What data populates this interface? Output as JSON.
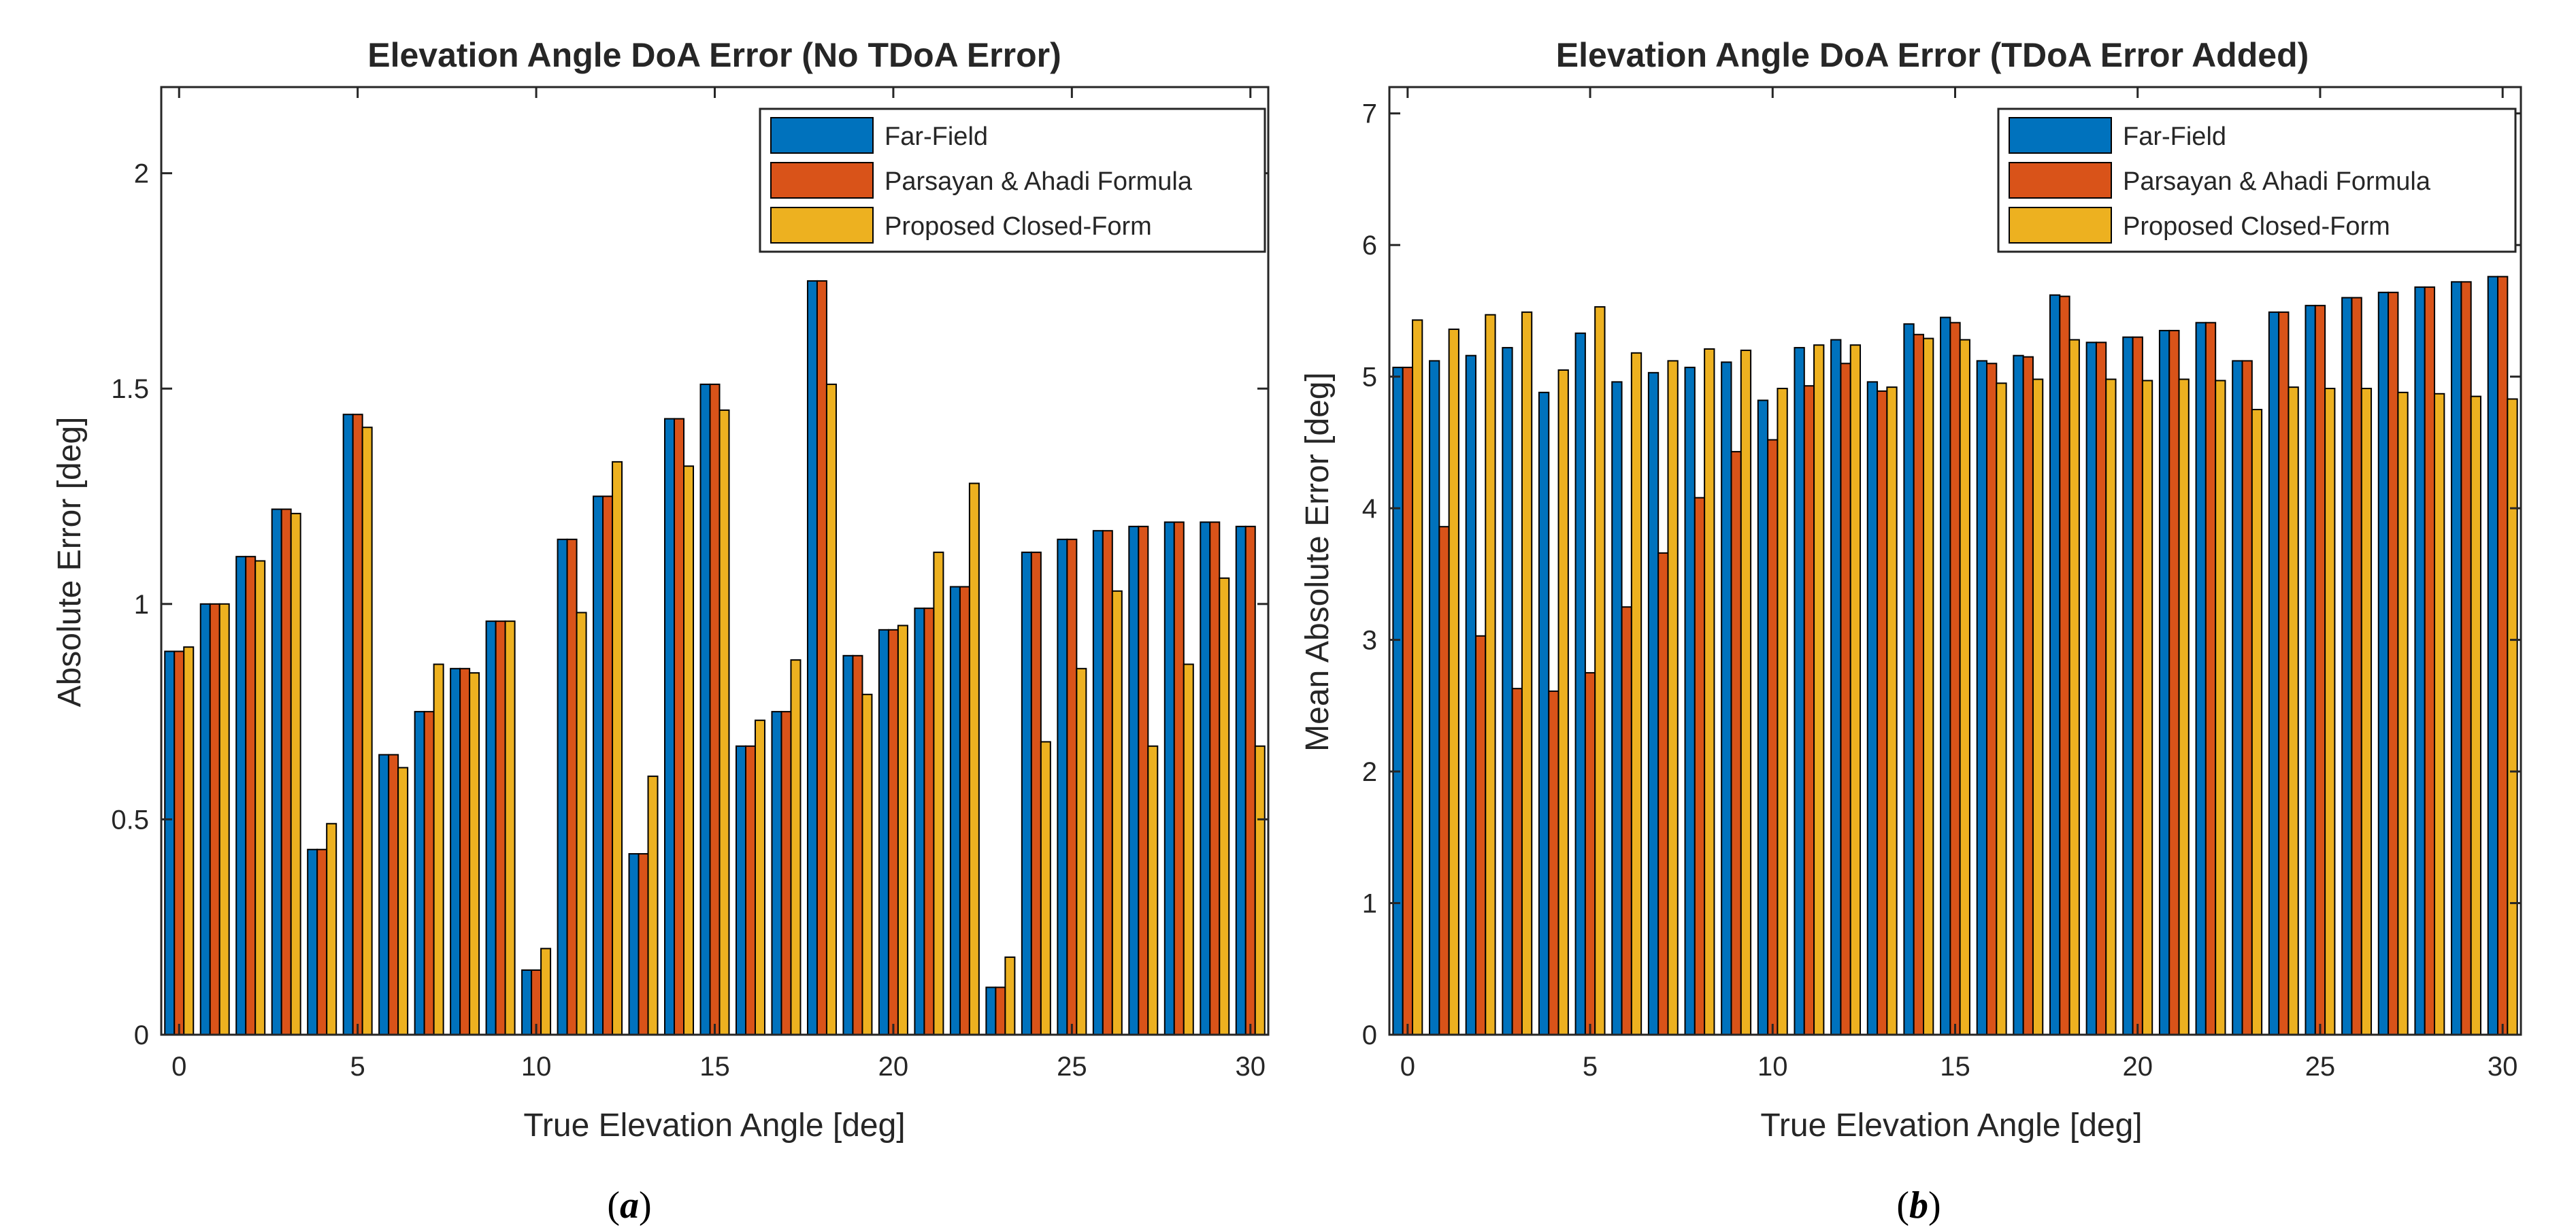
{
  "colors": {
    "far_field": "#0072BD",
    "parsayan_ahadi": "#D95319",
    "proposed": "#EDB120",
    "axis": "#262626",
    "bar_edge": "#000000"
  },
  "chart_data": [
    {
      "type": "bar",
      "panel_label": "a",
      "title": "Elevation Angle DoA Error (No TDoA Error)",
      "xlabel": "True Elevation Angle [deg]",
      "ylabel": "Absolute Error [deg]",
      "xlim": [
        -0.5,
        30.5
      ],
      "ylim": [
        0,
        2.2
      ],
      "xticks": [
        0,
        5,
        10,
        15,
        20,
        25,
        30
      ],
      "yticks": [
        0,
        0.5,
        1,
        1.5,
        2
      ],
      "ytick_labels": [
        "0",
        "0.5",
        "1",
        "1.5",
        "2"
      ],
      "legend_position": "top-right",
      "x": [
        0,
        1,
        2,
        3,
        4,
        5,
        6,
        7,
        8,
        9,
        10,
        11,
        12,
        13,
        14,
        15,
        16,
        17,
        18,
        19,
        20,
        21,
        22,
        23,
        24,
        25,
        26,
        27,
        28,
        29,
        30
      ],
      "series": [
        {
          "name": "Far-Field",
          "color_key": "far_field",
          "values": [
            0.89,
            1.0,
            1.11,
            1.22,
            0.43,
            1.44,
            0.65,
            0.75,
            0.85,
            0.96,
            0.15,
            1.15,
            1.25,
            0.42,
            1.43,
            1.51,
            0.67,
            0.75,
            1.75,
            0.88,
            0.94,
            0.99,
            1.04,
            0.11,
            1.12,
            1.15,
            1.17,
            1.18,
            1.19,
            1.19,
            1.18
          ]
        },
        {
          "name": "Parsayan & Ahadi Formula",
          "color_key": "parsayan_ahadi",
          "values": [
            0.89,
            1.0,
            1.11,
            1.22,
            0.43,
            1.44,
            0.65,
            0.75,
            0.85,
            0.96,
            0.15,
            1.15,
            1.25,
            0.42,
            1.43,
            1.51,
            0.67,
            0.75,
            1.75,
            0.88,
            0.94,
            0.99,
            1.04,
            0.11,
            1.12,
            1.15,
            1.17,
            1.18,
            1.19,
            1.19,
            1.18
          ]
        },
        {
          "name": "Proposed Closed-Form",
          "color_key": "proposed",
          "values": [
            0.9,
            1.0,
            1.1,
            1.21,
            0.49,
            1.41,
            0.62,
            0.86,
            0.84,
            0.96,
            0.2,
            0.98,
            1.33,
            0.6,
            1.32,
            1.45,
            0.73,
            0.87,
            1.51,
            0.79,
            0.95,
            1.12,
            1.28,
            0.18,
            0.68,
            0.85,
            1.03,
            0.67,
            0.86,
            1.06,
            0.67
          ]
        }
      ]
    },
    {
      "type": "bar",
      "panel_label": "b",
      "title": "Elevation Angle DoA Error (TDoA Error Added)",
      "xlabel": "True Elevation Angle [deg]",
      "ylabel": "Mean Absolute Error [deg]",
      "xlim": [
        -0.5,
        30.5
      ],
      "ylim": [
        0,
        7.2
      ],
      "xticks": [
        0,
        5,
        10,
        15,
        20,
        25,
        30
      ],
      "yticks": [
        0,
        1,
        2,
        3,
        4,
        5,
        6,
        7
      ],
      "ytick_labels": [
        "0",
        "1",
        "2",
        "3",
        "4",
        "5",
        "6",
        "7"
      ],
      "legend_position": "top-right",
      "x": [
        0,
        1,
        2,
        3,
        4,
        5,
        6,
        7,
        8,
        9,
        10,
        11,
        12,
        13,
        14,
        15,
        16,
        17,
        18,
        19,
        20,
        21,
        22,
        23,
        24,
        25,
        26,
        27,
        28,
        29,
        30
      ],
      "series": [
        {
          "name": "Far-Field",
          "color_key": "far_field",
          "values": [
            5.07,
            5.12,
            5.16,
            5.22,
            4.88,
            5.33,
            4.96,
            5.03,
            5.07,
            5.11,
            4.82,
            5.22,
            5.28,
            4.96,
            5.4,
            5.45,
            5.12,
            5.16,
            5.62,
            5.26,
            5.3,
            5.35,
            5.41,
            5.12,
            5.49,
            5.54,
            5.6,
            5.64,
            5.68,
            5.72,
            5.76
          ]
        },
        {
          "name": "Parsayan & Ahadi Formula",
          "color_key": "parsayan_ahadi",
          "values": [
            5.07,
            3.86,
            3.03,
            2.63,
            2.61,
            2.75,
            3.25,
            3.66,
            4.08,
            4.43,
            4.52,
            4.93,
            5.1,
            4.89,
            5.32,
            5.41,
            5.1,
            5.15,
            5.61,
            5.26,
            5.3,
            5.35,
            5.41,
            5.12,
            5.49,
            5.54,
            5.6,
            5.64,
            5.68,
            5.72,
            5.76
          ]
        },
        {
          "name": "Proposed Closed-Form",
          "color_key": "proposed",
          "values": [
            5.43,
            5.36,
            5.47,
            5.49,
            5.05,
            5.53,
            5.18,
            5.12,
            5.21,
            5.2,
            4.91,
            5.24,
            5.24,
            4.92,
            5.29,
            5.28,
            4.95,
            4.98,
            5.28,
            4.98,
            4.97,
            4.98,
            4.97,
            4.75,
            4.92,
            4.91,
            4.91,
            4.88,
            4.87,
            4.85,
            4.83
          ]
        }
      ]
    }
  ]
}
